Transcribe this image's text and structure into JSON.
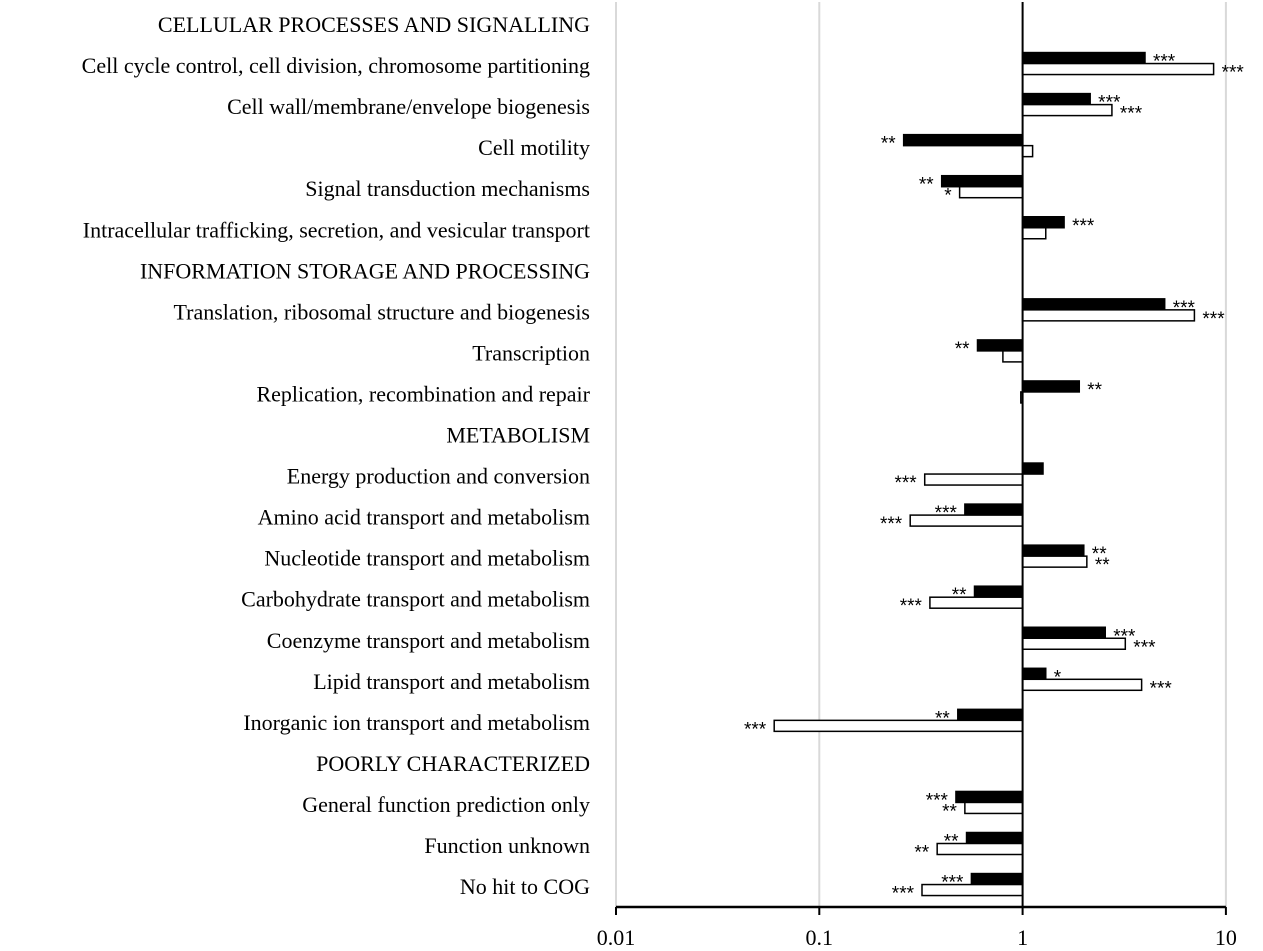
{
  "chart_data": {
    "type": "bar",
    "orientation": "horizontal",
    "x_scale": "log",
    "xlim": [
      0.01,
      10
    ],
    "x_ticks": [
      "0.01",
      "0.1",
      "1",
      "10"
    ],
    "grid": "vertical",
    "categories": [
      {
        "label": "CELLULAR PROCESSES AND SIGNALLING",
        "header": true
      },
      {
        "label": "Cell cycle control, cell division, chromosome partitioning",
        "filled": 4.0,
        "filled_sig": "***",
        "open": 8.7,
        "open_sig": "***"
      },
      {
        "label": "Cell wall/membrane/envelope  biogenesis",
        "filled": 2.15,
        "filled_sig": "***",
        "open": 2.75,
        "open_sig": "***"
      },
      {
        "label": "Cell motility",
        "filled": 0.26,
        "filled_sig": "**",
        "open": 1.12,
        "open_sig": ""
      },
      {
        "label": "Signal transduction mechanisms",
        "filled": 0.4,
        "filled_sig": "**",
        "open": 0.49,
        "open_sig": "*"
      },
      {
        "label": "Intracellular trafficking,  secretion, and vesicular transport",
        "filled": 1.6,
        "filled_sig": "***",
        "open": 1.3,
        "open_sig": ""
      },
      {
        "label": "INFORMATION STORAGE AND PROCESSING",
        "header": true
      },
      {
        "label": "Translation, ribosomal structure and biogenesis",
        "filled": 5.0,
        "filled_sig": "***",
        "open": 7.0,
        "open_sig": "***"
      },
      {
        "label": "Transcription",
        "filled": 0.6,
        "filled_sig": "**",
        "open": 0.8,
        "open_sig": ""
      },
      {
        "label": "Replication, recombination and repair",
        "filled": 1.9,
        "filled_sig": "**",
        "open": 0.98,
        "open_sig": ""
      },
      {
        "label": "METABOLISM",
        "header": true
      },
      {
        "label": "Energy production and conversion",
        "filled": 1.26,
        "filled_sig": "",
        "open": 0.33,
        "open_sig": "***"
      },
      {
        "label": "Amino acid transport and metabolism",
        "filled": 0.52,
        "filled_sig": "***",
        "open": 0.28,
        "open_sig": "***"
      },
      {
        "label": "Nucleotide transport and metabolism",
        "filled": 2.0,
        "filled_sig": "**",
        "open": 2.07,
        "open_sig": "**"
      },
      {
        "label": "Carbohydrate transport and metabolism",
        "filled": 0.58,
        "filled_sig": "**",
        "open": 0.35,
        "open_sig": "***"
      },
      {
        "label": "Coenzyme transport and metabolism",
        "filled": 2.55,
        "filled_sig": "***",
        "open": 3.2,
        "open_sig": "***"
      },
      {
        "label": "Lipid transport and metabolism",
        "filled": 1.3,
        "filled_sig": "*",
        "open": 3.85,
        "open_sig": "***"
      },
      {
        "label": "Inorganic ion transport and metabolism",
        "filled": 0.48,
        "filled_sig": "**",
        "open": 0.06,
        "open_sig": "***"
      },
      {
        "label": "POORLY CHARACTERIZED",
        "header": true
      },
      {
        "label": "General  function prediction only",
        "filled": 0.47,
        "filled_sig": "***",
        "open": 0.52,
        "open_sig": "**"
      },
      {
        "label": "Function unknown",
        "filled": 0.53,
        "filled_sig": "**",
        "open": 0.38,
        "open_sig": "**"
      },
      {
        "label": "No hit to COG",
        "filled": 0.56,
        "filled_sig": "***",
        "open": 0.32,
        "open_sig": "***"
      }
    ],
    "colors": {
      "filled": "#000000",
      "open": "#ffffff",
      "grid": "#d9d9d9"
    }
  }
}
